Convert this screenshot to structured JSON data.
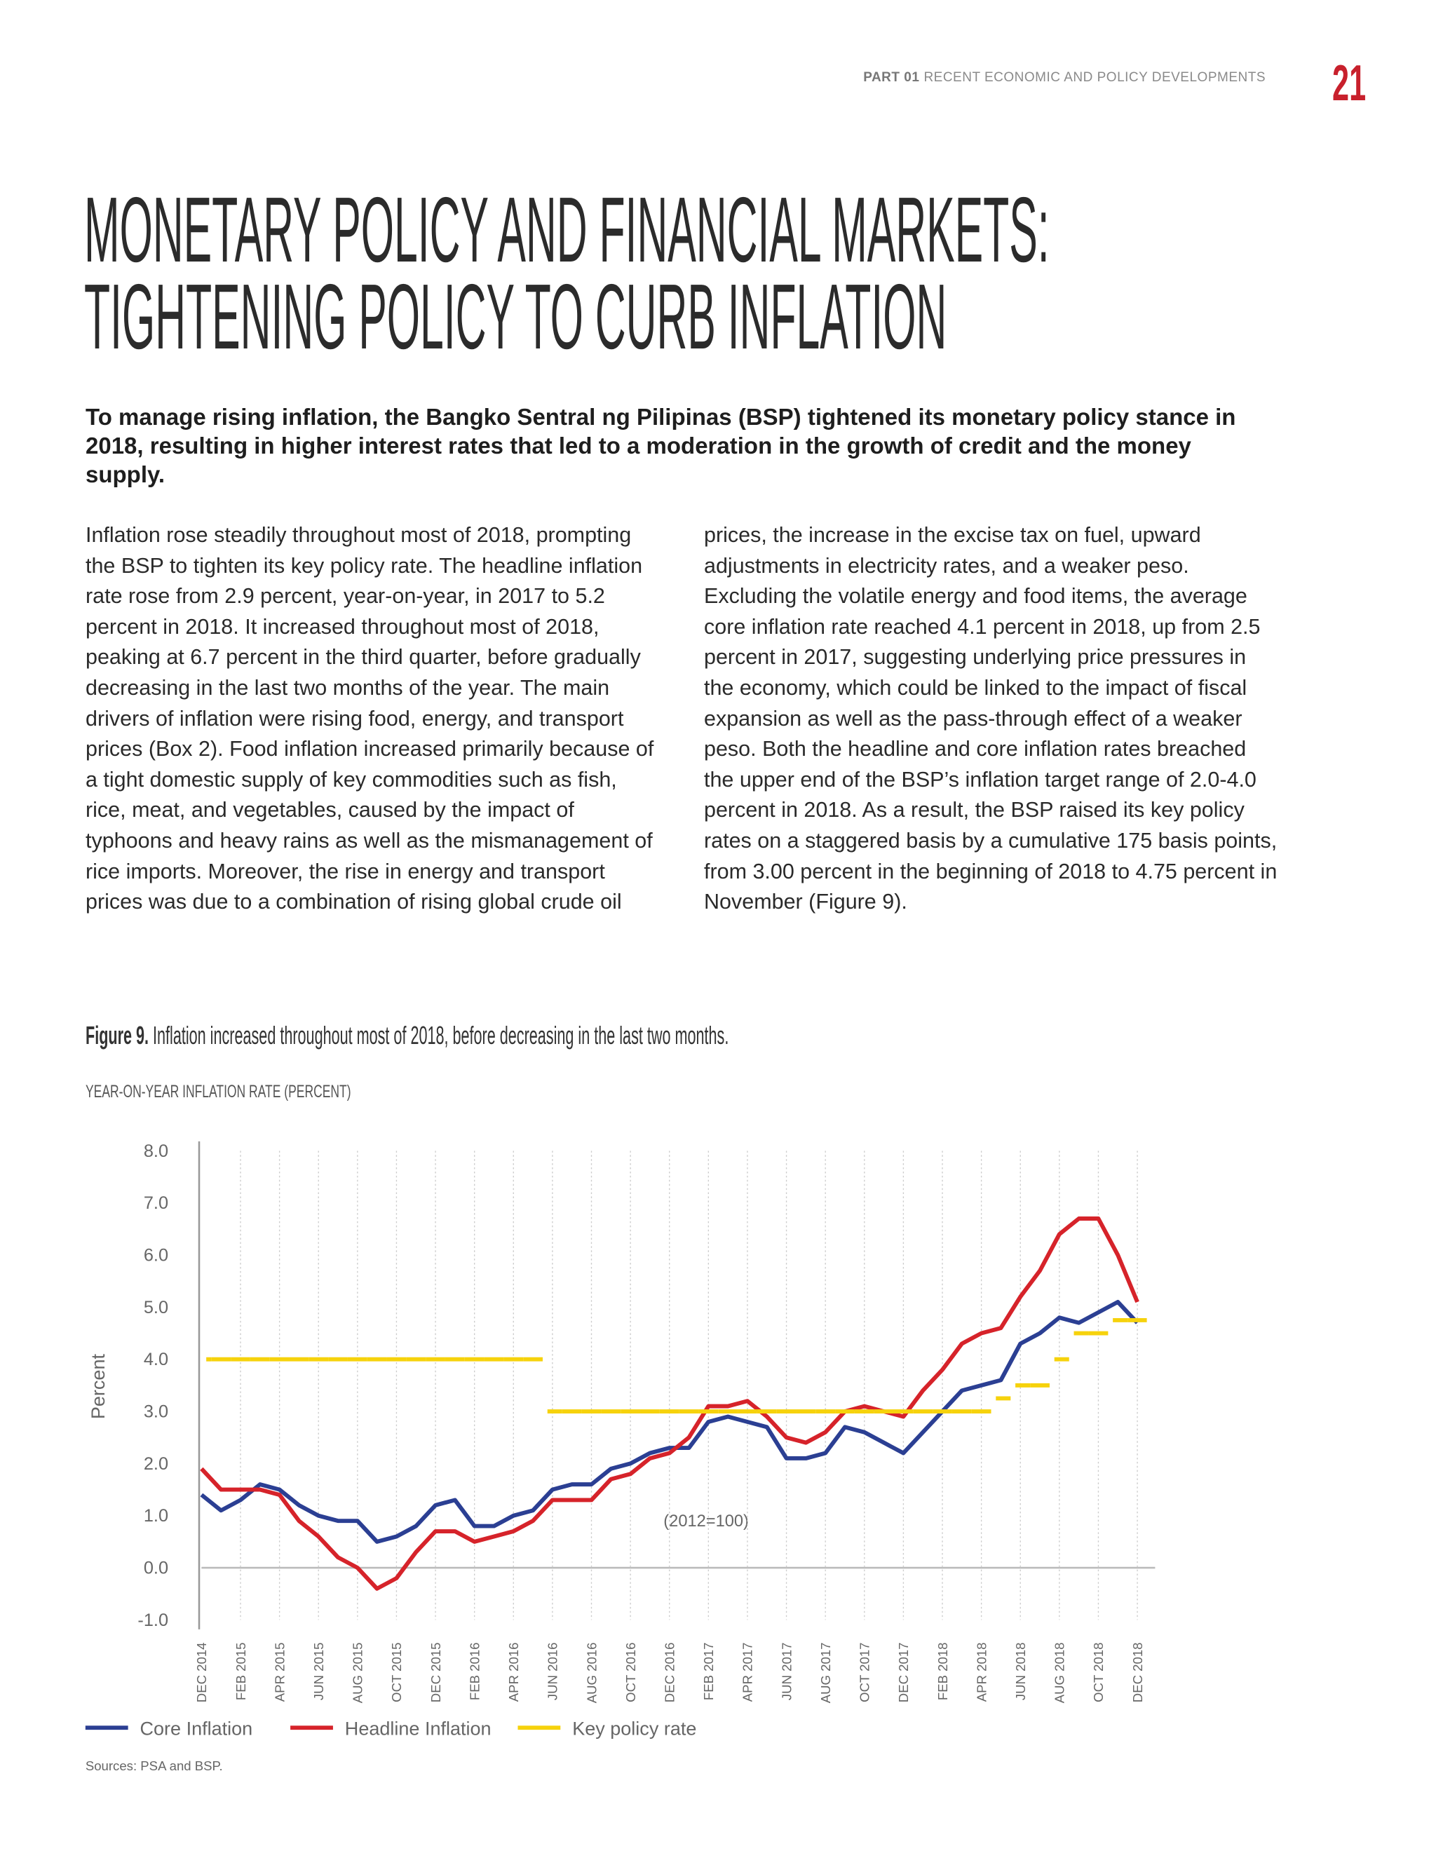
{
  "header": {
    "part": "PART 01",
    "section": "RECENT ECONOMIC AND POLICY DEVELOPMENTS",
    "page_number": "21"
  },
  "title": [
    "MONETARY POLICY AND FINANCIAL MARKETS:",
    "TIGHTENING POLICY TO CURB INFLATION"
  ],
  "intro": "To manage rising inflation, the Bangko Sentral ng Pilipinas (BSP) tightened its monetary policy stance in 2018, resulting in higher interest rates that led to a moderation in the growth of credit and the money supply.",
  "body": [
    "Inflation rose steadily throughout most of 2018, prompting the BSP to tighten its key policy rate. The headline inflation rate rose from 2.9 percent, year-on-year, in 2017 to 5.2 percent in 2018. It increased throughout most of 2018, peaking at 6.7 percent in the third quarter, before gradually decreasing in the last two months of the year. The main drivers of inflation were rising food, energy, and transport prices (Box 2). Food inflation increased primarily because of a tight domestic supply of key commodities such as fish, rice, meat, and vegetables, caused by the impact of typhoons and heavy rains as well as the mismanagement of rice imports. Moreover, the rise in energy and transport prices was due to a combination of rising global crude oil",
    "prices, the increase in the excise tax on fuel, upward adjustments in electricity rates, and a weaker peso. Excluding the volatile energy and food items, the average core inflation rate reached 4.1 percent in 2018, up from 2.5 percent in 2017, suggesting underlying price pressures in the economy, which could be linked to the impact of fiscal expansion as well as the pass-through effect of a weaker peso. Both the headline and core inflation rates breached the upper end of the BSP’s inflation target range of 2.0-4.0 percent in 2018. As a result, the BSP raised its key policy rates on a staggered basis by a cumulative 175 basis points, from 3.00 percent in the beginning of 2018 to 4.75 percent in November (Figure 9)."
  ],
  "figure": {
    "label": "Figure 9.",
    "caption": "Inflation increased throughout most of 2018, before decreasing in the last two months."
  },
  "chart_data": {
    "type": "line",
    "title": "YEAR-ON-YEAR INFLATION RATE (PERCENT)",
    "ylabel": "Percent",
    "annotation": "(2012=100)",
    "source": "Sources: PSA and BSP.",
    "categories": [
      "DEC 2014",
      null,
      "FEB 2015",
      null,
      "APR 2015",
      null,
      "JUN 2015",
      null,
      "AUG 2015",
      null,
      "OCT 2015",
      null,
      "DEC 2015",
      null,
      "FEB 2016",
      null,
      "APR 2016",
      null,
      "JUN 2016",
      null,
      "AUG 2016",
      null,
      "OCT 2016",
      null,
      "DEC 2016",
      null,
      "FEB 2017",
      null,
      "APR 2017",
      null,
      "JUN 2017",
      null,
      "AUG 2017",
      null,
      "OCT 2017",
      null,
      "DEC 2017",
      null,
      "FEB 2018",
      null,
      "APR 2018",
      null,
      "JUN 2018",
      null,
      "AUG 2018",
      null,
      "OCT 2018",
      null,
      "DEC 2018"
    ],
    "series": [
      {
        "name": "Core Inflation",
        "color": "#2b3f93",
        "values": [
          1.4,
          1.1,
          1.3,
          1.6,
          1.5,
          1.2,
          1.0,
          0.9,
          0.9,
          0.5,
          0.6,
          0.8,
          1.2,
          1.3,
          0.8,
          0.8,
          1.0,
          1.1,
          1.5,
          1.6,
          1.6,
          1.9,
          2.0,
          2.2,
          2.3,
          2.3,
          2.8,
          2.9,
          2.8,
          2.7,
          2.1,
          2.1,
          2.2,
          2.7,
          2.6,
          2.4,
          2.2,
          2.6,
          3.0,
          3.4,
          3.5,
          3.6,
          4.3,
          4.5,
          4.8,
          4.7,
          4.9,
          5.1,
          4.7
        ]
      },
      {
        "name": "Headline Inflation",
        "color": "#d6232a",
        "values": [
          1.9,
          1.5,
          1.5,
          1.5,
          1.4,
          0.9,
          0.6,
          0.2,
          0.0,
          -0.4,
          -0.2,
          0.3,
          0.7,
          0.7,
          0.5,
          0.6,
          0.7,
          0.9,
          1.3,
          1.3,
          1.3,
          1.7,
          1.8,
          2.1,
          2.2,
          2.5,
          3.1,
          3.1,
          3.2,
          2.9,
          2.5,
          2.4,
          2.6,
          3.0,
          3.1,
          3.0,
          2.9,
          3.4,
          3.8,
          4.3,
          4.5,
          4.6,
          5.2,
          5.7,
          6.4,
          6.7,
          6.7,
          6.0,
          5.1
        ]
      },
      {
        "name": "Key policy rate",
        "color": "#f6d20c",
        "step": true,
        "values": [
          4.0,
          4.0,
          4.0,
          4.0,
          4.0,
          4.0,
          4.0,
          4.0,
          4.0,
          4.0,
          4.0,
          4.0,
          4.0,
          4.0,
          4.0,
          4.0,
          4.0,
          4.0,
          3.0,
          3.0,
          3.0,
          3.0,
          3.0,
          3.0,
          3.0,
          3.0,
          3.0,
          3.0,
          3.0,
          3.0,
          3.0,
          3.0,
          3.0,
          3.0,
          3.0,
          3.0,
          3.0,
          3.0,
          3.0,
          3.0,
          3.0,
          3.25,
          3.5,
          3.5,
          4.0,
          4.5,
          4.5,
          4.75,
          4.75
        ]
      }
    ],
    "ylim": [
      -1,
      8
    ],
    "yticks": [
      {
        "value": -1,
        "label": "-1.0"
      },
      {
        "value": 0,
        "label": "0.0"
      },
      {
        "value": 1,
        "label": "1.0"
      },
      {
        "value": 2,
        "label": "2.0"
      },
      {
        "value": 3,
        "label": "3.0"
      },
      {
        "value": 4,
        "label": "4.0"
      },
      {
        "value": 5,
        "label": "5.0"
      },
      {
        "value": 6,
        "label": "6.0"
      },
      {
        "value": 7,
        "label": "7.0"
      },
      {
        "value": 8,
        "label": "8.0"
      }
    ],
    "grid": true,
    "legend": "bottom"
  }
}
